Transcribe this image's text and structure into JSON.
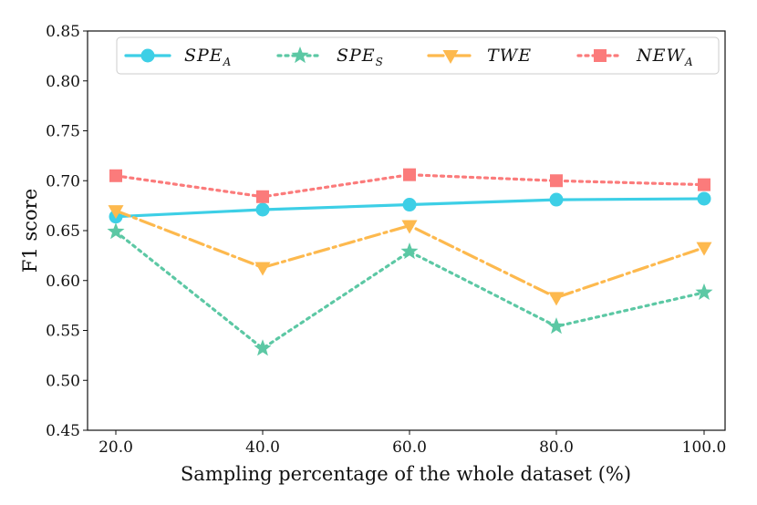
{
  "chart_data": {
    "type": "line",
    "title": "",
    "xlabel": "Sampling percentage of the whole dataset (%)",
    "ylabel": "F1 score",
    "categories": [
      "20.0",
      "40.0",
      "60.0",
      "80.0",
      "100.0"
    ],
    "x": [
      20,
      40,
      60,
      80,
      100
    ],
    "ylim": [
      0.45,
      0.85
    ],
    "yticks": [
      "0.45",
      "0.50",
      "0.55",
      "0.60",
      "0.65",
      "0.70",
      "0.75",
      "0.80",
      "0.85"
    ],
    "legend_position": "top",
    "series": [
      {
        "name": "SPE",
        "sub": "A",
        "color": "#3dcfe6",
        "marker": "circle",
        "line": "solid",
        "values": [
          0.664,
          0.671,
          0.676,
          0.681,
          0.682
        ]
      },
      {
        "name": "SPE",
        "sub": "S",
        "color": "#5cc8a4",
        "marker": "star",
        "line": "dotted",
        "values": [
          0.649,
          0.532,
          0.629,
          0.554,
          0.588
        ]
      },
      {
        "name": "TWE",
        "sub": "",
        "color": "#fdb94e",
        "marker": "triangle-down",
        "line": "dashdot",
        "values": [
          0.67,
          0.613,
          0.655,
          0.583,
          0.633
        ]
      },
      {
        "name": "NEW",
        "sub": "A",
        "color": "#fb7b7b",
        "marker": "square",
        "line": "dotted",
        "values": [
          0.705,
          0.684,
          0.706,
          0.7,
          0.696
        ]
      }
    ]
  }
}
